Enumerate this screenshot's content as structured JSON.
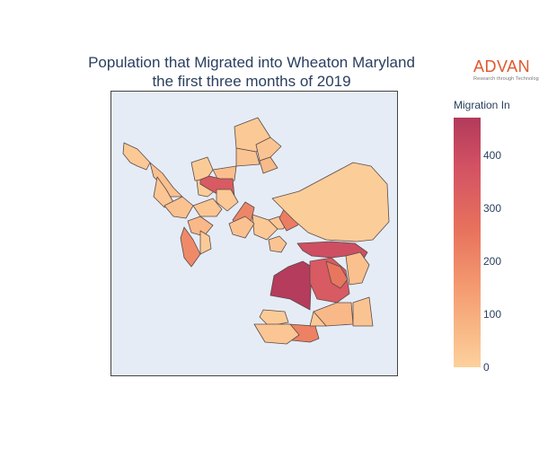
{
  "title": {
    "line1": "Population that Migrated into Wheaton Maryland",
    "line2": "the first three months of 2019"
  },
  "logo": {
    "wordmark": "ADVAN",
    "tagline": "Research through Technology"
  },
  "colorbar": {
    "title": "Migration In",
    "ticks": [
      "400",
      "300",
      "200",
      "100",
      "0"
    ],
    "scale": [
      "#fcd19c",
      "#f59e72",
      "#e7725d",
      "#d35263",
      "#b23a5b"
    ]
  },
  "map": {
    "land_color": "#e5ecf6",
    "region_values": [
      20,
      40,
      25,
      35,
      15,
      10,
      45,
      330,
      20,
      30,
      30,
      55,
      185,
      20,
      25,
      60,
      175,
      15,
      20,
      25,
      210,
      30,
      470,
      380,
      330,
      230,
      40,
      60,
      30,
      200,
      15,
      20,
      10,
      25,
      35
    ]
  }
}
